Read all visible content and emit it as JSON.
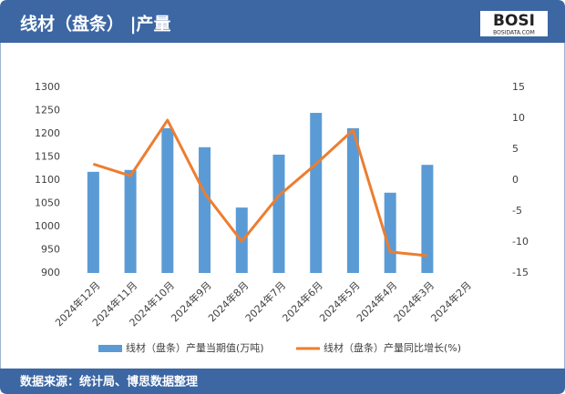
{
  "header": {
    "title": "线材（盘条） |产量",
    "logo": "BOSI",
    "logo_sub": "BOSIDATA.COM"
  },
  "chart_data": {
    "type": "bar",
    "categories": [
      "2024年12月",
      "2024年11月",
      "2024年10月",
      "2024年9月",
      "2024年8月",
      "2024年7月",
      "2024年6月",
      "2024年5月",
      "2024年4月",
      "2024年3月",
      "2024年2月"
    ],
    "series": [
      {
        "name": "线材（盘条）产量当期值(万吨)",
        "type": "bar",
        "color": "#5b9bd5",
        "values": [
          1118,
          1122,
          1212,
          1171,
          1041,
          1155,
          1245,
          1212,
          1073,
          1133,
          null
        ]
      },
      {
        "name": "线材（盘条）产量同比增长(%)",
        "type": "line",
        "axis": "y2",
        "color": "#ed7d31",
        "values": [
          2.6,
          0.7,
          9.7,
          -2.1,
          -9.9,
          -2.5,
          2.6,
          8.1,
          -11.6,
          -12.2,
          null
        ]
      }
    ],
    "ylim": [
      900,
      1300
    ],
    "yticks": [
      900,
      950,
      1000,
      1050,
      1100,
      1150,
      1200,
      1250,
      1300
    ],
    "y2lim": [
      -15,
      15
    ],
    "y2ticks": [
      -15,
      -10,
      -5,
      0,
      5,
      10,
      15
    ],
    "legend": "bottom"
  },
  "footer": {
    "source": "数据来源：统计局、博思数据整理"
  }
}
